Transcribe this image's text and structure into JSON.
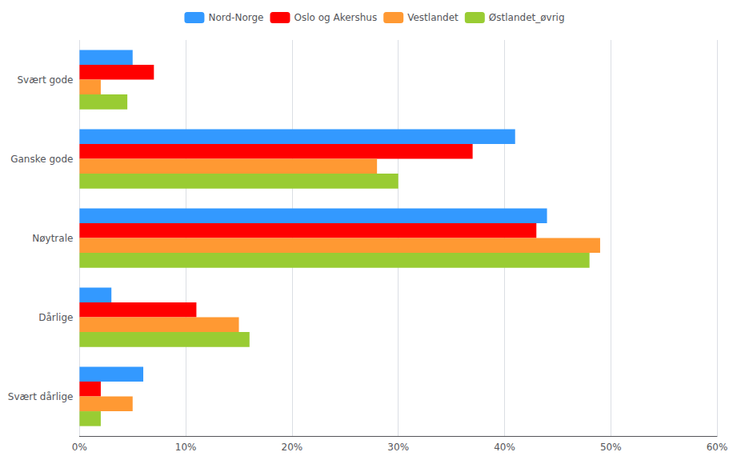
{
  "chart_data": {
    "type": "bar",
    "orientation": "horizontal",
    "categories": [
      "Svært gode",
      "Ganske gode",
      "Nøytrale",
      "Dårlige",
      "Svært dårlige"
    ],
    "series": [
      {
        "name": "Nord-Norge",
        "color": "#3399FF",
        "values": [
          5,
          41,
          44,
          3,
          6
        ]
      },
      {
        "name": "Oslo og Akershus",
        "color": "#FF0000",
        "values": [
          7,
          37,
          43,
          11,
          2
        ]
      },
      {
        "name": "Vestlandet",
        "color": "#FF9933",
        "values": [
          2,
          28,
          49,
          15,
          5
        ]
      },
      {
        "name": "Østlandet_øvrig",
        "color": "#99CC33",
        "values": [
          4.5,
          30,
          48,
          16,
          2
        ]
      }
    ],
    "xlim": [
      0,
      60
    ],
    "xticks": [
      {
        "value": 0,
        "label": "0%"
      },
      {
        "value": 10,
        "label": "10%"
      },
      {
        "value": 20,
        "label": "20%"
      },
      {
        "value": 30,
        "label": "30%"
      },
      {
        "value": 40,
        "label": "40%"
      },
      {
        "value": 50,
        "label": "50%"
      },
      {
        "value": 60,
        "label": "60%"
      }
    ],
    "grid": true,
    "legend": "top"
  }
}
